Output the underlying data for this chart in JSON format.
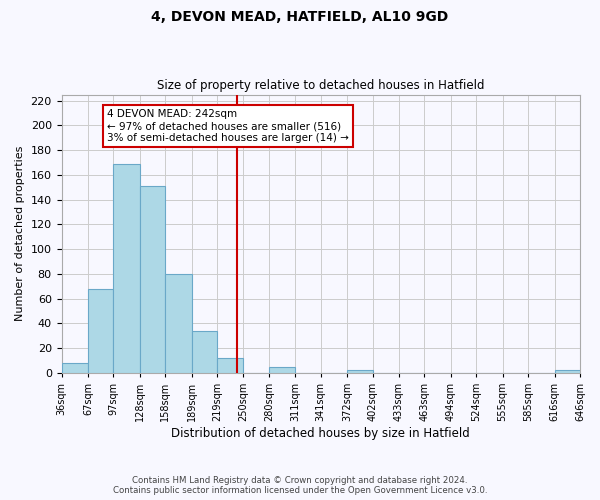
{
  "title": "4, DEVON MEAD, HATFIELD, AL10 9GD",
  "subtitle": "Size of property relative to detached houses in Hatfield",
  "xlabel": "Distribution of detached houses by size in Hatfield",
  "ylabel": "Number of detached properties",
  "bar_values": [
    8,
    68,
    169,
    151,
    80,
    34,
    12,
    0,
    5,
    0,
    0,
    2,
    0,
    0,
    0,
    0,
    0,
    0,
    0,
    2
  ],
  "bin_labels": [
    "36sqm",
    "67sqm",
    "97sqm",
    "128sqm",
    "158sqm",
    "189sqm",
    "219sqm",
    "250sqm",
    "280sqm",
    "311sqm",
    "341sqm",
    "372sqm",
    "402sqm",
    "433sqm",
    "463sqm",
    "494sqm",
    "524sqm",
    "555sqm",
    "585sqm",
    "616sqm",
    "646sqm"
  ],
  "bin_edges": [
    36,
    67,
    97,
    128,
    158,
    189,
    219,
    250,
    280,
    311,
    341,
    372,
    402,
    433,
    463,
    494,
    524,
    555,
    585,
    616,
    646
  ],
  "vline_x": 242,
  "bar_color": "#add8e6",
  "bar_edge_color": "#6aa8c8",
  "vline_color": "#cc0000",
  "annotation_line1": "4 DEVON MEAD: 242sqm",
  "annotation_line2": "← 97% of detached houses are smaller (516)",
  "annotation_line3": "3% of semi-detached houses are larger (14) →",
  "annotation_box_color": "#ffffff",
  "annotation_box_edge_color": "#cc0000",
  "ylim": [
    0,
    225
  ],
  "yticks": [
    0,
    20,
    40,
    60,
    80,
    100,
    120,
    140,
    160,
    180,
    200,
    220
  ],
  "footer_line1": "Contains HM Land Registry data © Crown copyright and database right 2024.",
  "footer_line2": "Contains public sector information licensed under the Open Government Licence v3.0.",
  "background_color": "#f8f8ff",
  "grid_color": "#cccccc"
}
